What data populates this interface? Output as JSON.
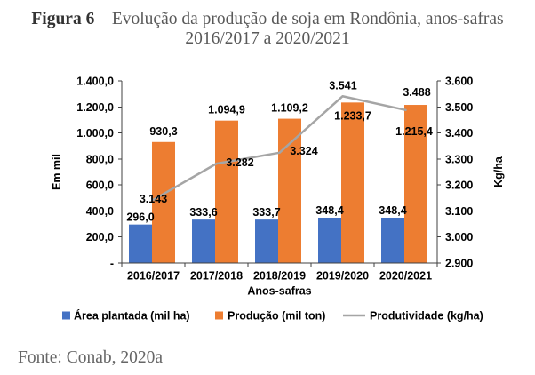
{
  "caption": {
    "figure_label": "Figura 6",
    "title_line1": "– Evolução da produção de soja em Rondônia, anos-safras",
    "title_line2": "2016/2017 a 2020/2021"
  },
  "source": "Fonte: Conab, 2020a",
  "chart_data": {
    "type": "bar",
    "categories": [
      "2016/2017",
      "2017/2018",
      "2018/2019",
      "2019/2020",
      "2020/2021"
    ],
    "series": [
      {
        "name": "Área plantada (mil ha)",
        "type": "bar",
        "axis": "left",
        "color": "#4472C4",
        "values": [
          296.0,
          333.6,
          333.7,
          348.4,
          348.4
        ],
        "labels": [
          "296,0",
          "333,6",
          "333,7",
          "348,4",
          "348,4"
        ]
      },
      {
        "name": "Produção (mil ton)",
        "type": "bar",
        "axis": "left",
        "color": "#ED7D31",
        "values": [
          930.3,
          1094.9,
          1109.2,
          1233.7,
          1215.4
        ],
        "labels": [
          "930,3",
          "1.094,9",
          "1.109,2",
          "1.233,7",
          "1.215,4"
        ]
      },
      {
        "name": "Produtividade (kg/ha)",
        "type": "line",
        "axis": "right",
        "color": "#A5A5A5",
        "values": [
          3143,
          3282,
          3324,
          3541,
          3488
        ],
        "labels": [
          "3.143",
          "3.282",
          "3.324",
          "3.541",
          "3.488"
        ]
      }
    ],
    "xlabel": "Anos-safras",
    "ylabel": "Em mil",
    "y2label": "Kg/ha",
    "ylim": [
      0,
      1400
    ],
    "y2lim": [
      2900,
      3600
    ],
    "yticks": [
      {
        "value": 0,
        "label": "-"
      },
      {
        "value": 200,
        "label": "200,0"
      },
      {
        "value": 400,
        "label": "400,0"
      },
      {
        "value": 600,
        "label": "600,0"
      },
      {
        "value": 800,
        "label": "800,0"
      },
      {
        "value": 1000,
        "label": "1.000,0"
      },
      {
        "value": 1200,
        "label": "1.200,0"
      },
      {
        "value": 1400,
        "label": "1.400,0"
      }
    ],
    "y2ticks": [
      {
        "value": 2900,
        "label": "2.900"
      },
      {
        "value": 3000,
        "label": "3.000"
      },
      {
        "value": 3100,
        "label": "3.100"
      },
      {
        "value": 3200,
        "label": "3.200"
      },
      {
        "value": 3300,
        "label": "3.300"
      },
      {
        "value": 3400,
        "label": "3.400"
      },
      {
        "value": 3500,
        "label": "3.500"
      },
      {
        "value": 3600,
        "label": "3.600"
      }
    ],
    "grid": false,
    "legend": "bottom"
  }
}
